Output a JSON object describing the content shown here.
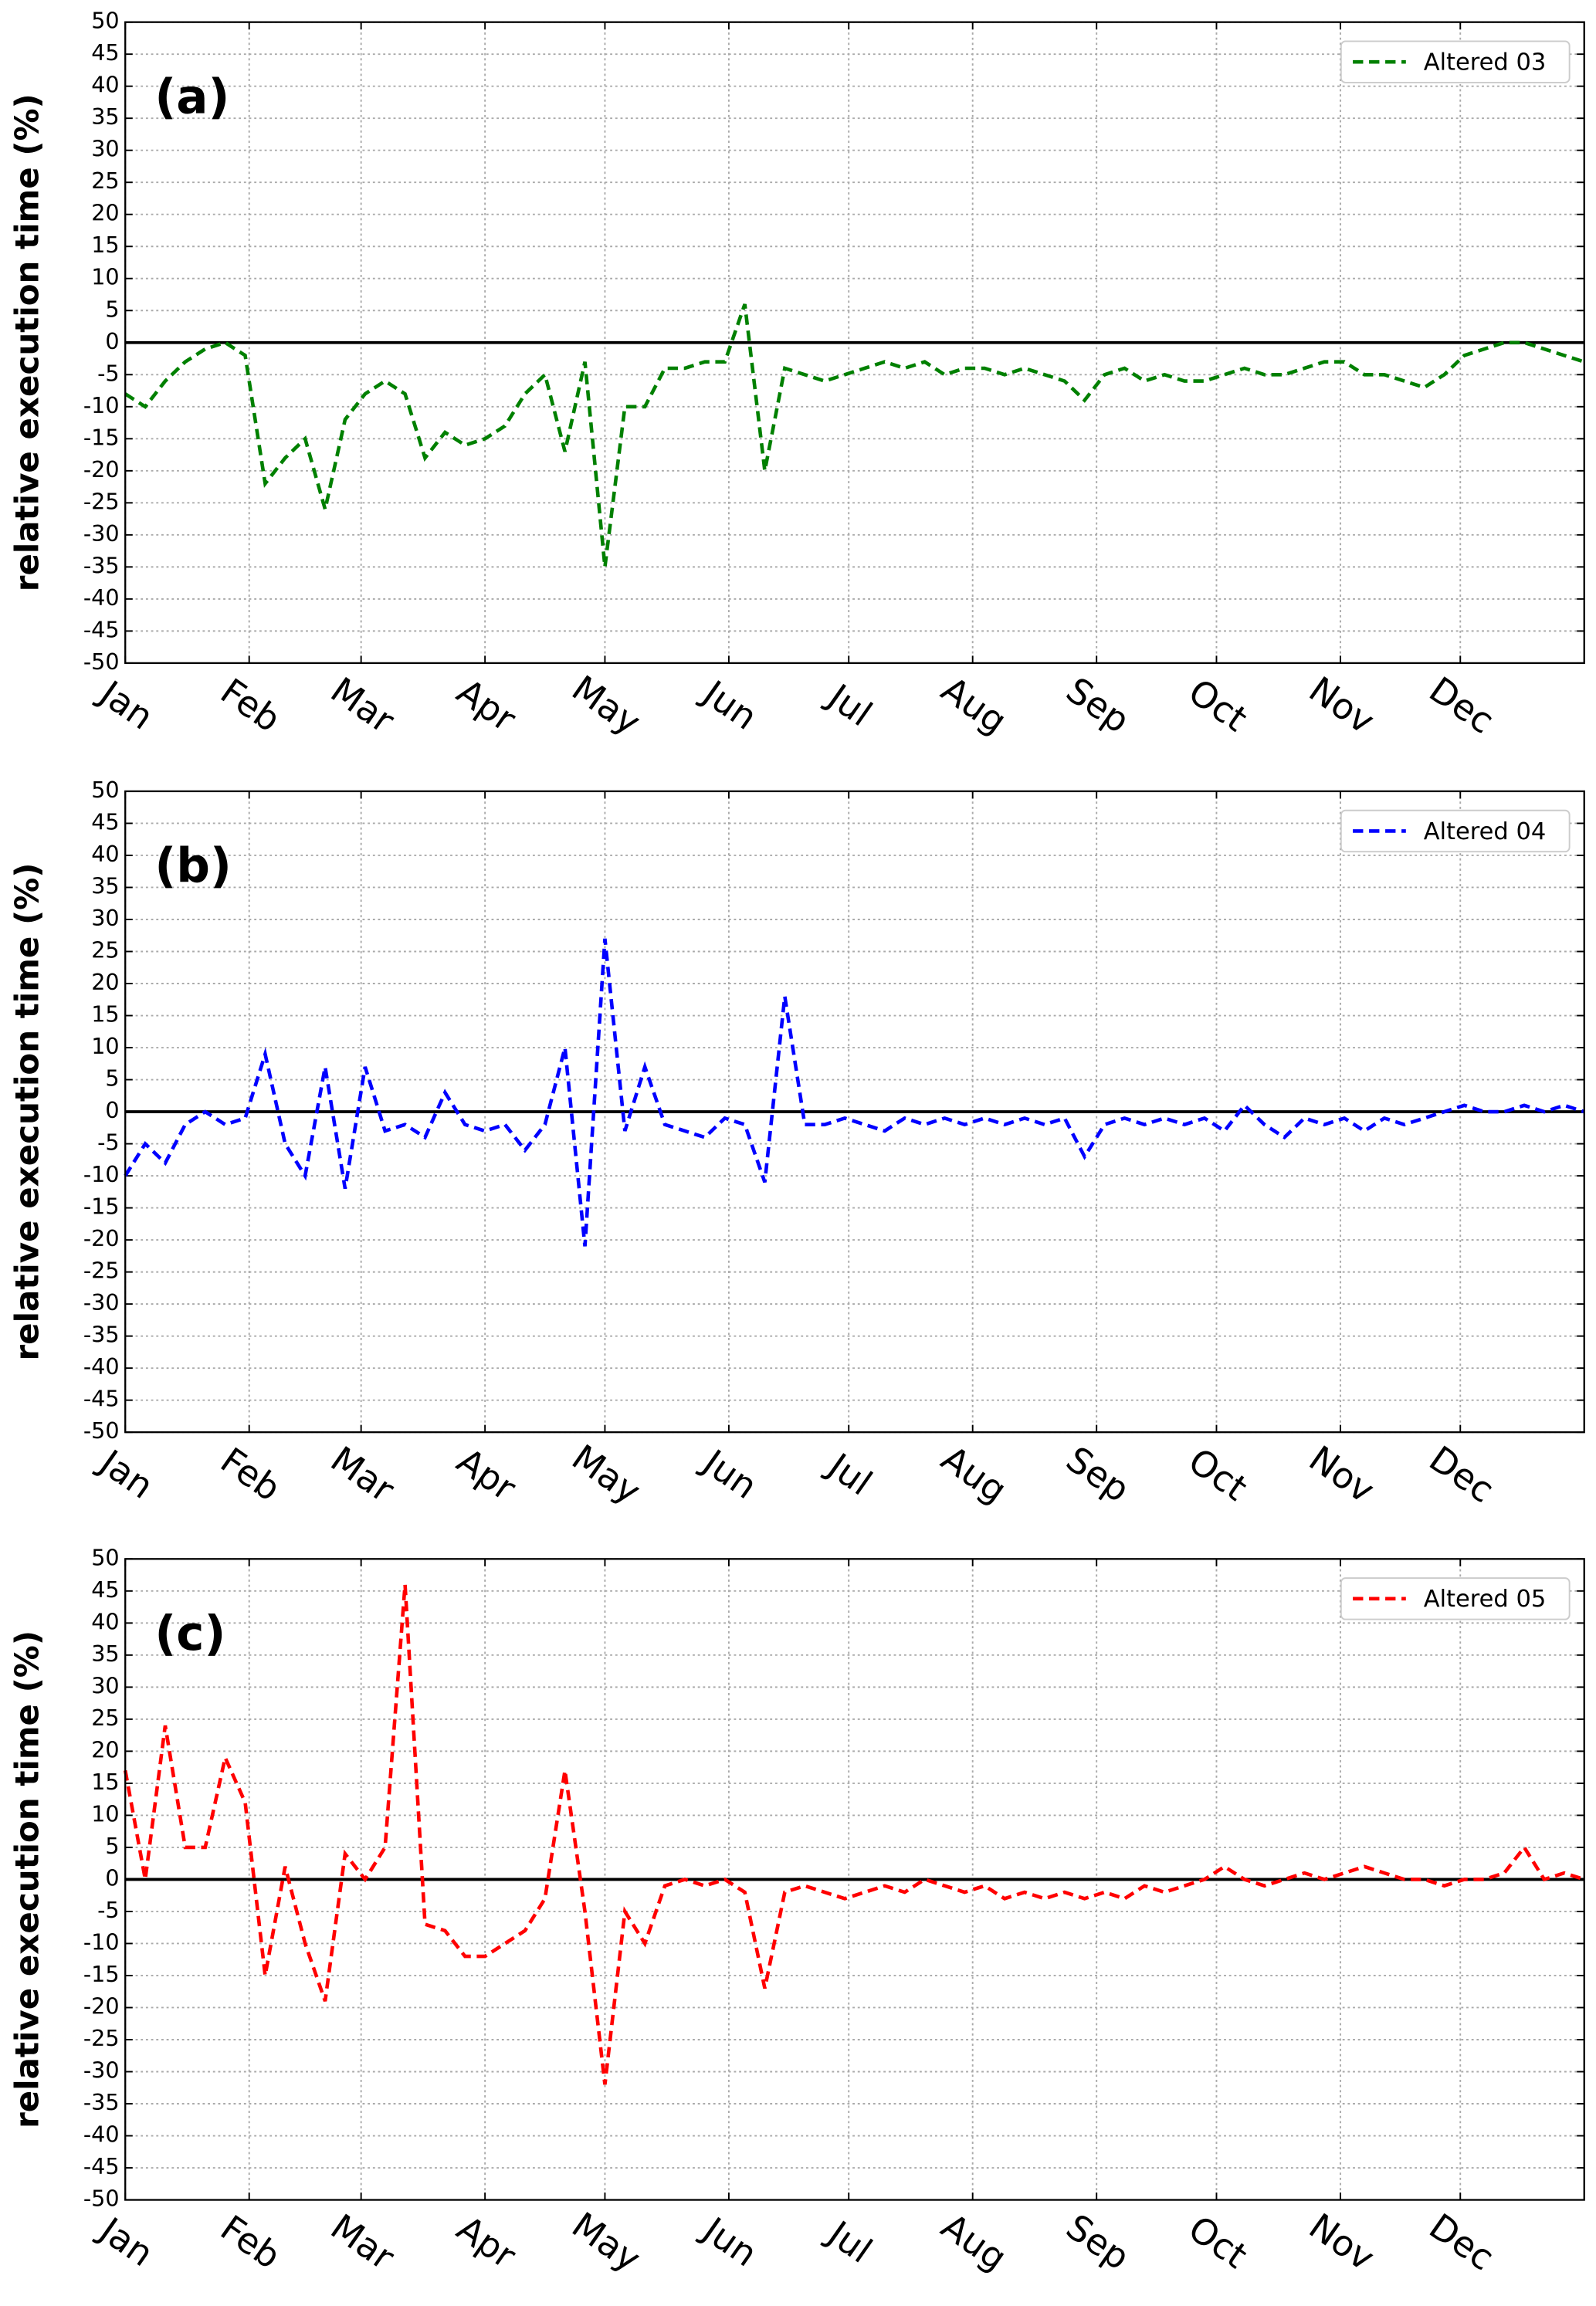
{
  "chart_data": [
    {
      "type": "line",
      "panel_label": "(a)",
      "ylabel": "relative execution time (%)",
      "x": [
        0,
        5,
        10,
        15,
        20,
        25,
        30,
        35,
        40,
        45,
        50,
        55,
        60,
        65,
        70,
        75,
        80,
        85,
        90,
        95,
        100,
        105,
        110,
        115,
        120,
        125,
        130,
        135,
        140,
        145,
        150,
        155,
        160,
        165,
        170,
        175,
        180,
        185,
        190,
        195,
        200,
        205,
        210,
        215,
        220,
        225,
        230,
        235,
        240,
        245,
        250,
        255,
        260,
        265,
        270,
        275,
        280,
        285,
        290,
        295,
        300,
        305,
        310,
        315,
        320,
        325,
        330,
        335,
        340,
        345,
        350,
        355,
        360,
        365
      ],
      "series": [
        {
          "name": "Altered 03",
          "color": "#008000",
          "values": [
            -8,
            -10,
            -6,
            -3,
            -1,
            0,
            -2,
            -22,
            -18,
            -15,
            -26,
            -12,
            -8,
            -6,
            -8,
            -18,
            -14,
            -16,
            -15,
            -13,
            -8,
            -5,
            -17,
            -3,
            -35,
            -10,
            -10,
            -4,
            -4,
            -3,
            -3,
            6,
            -20,
            -4,
            -5,
            -6,
            -5,
            -4,
            -3,
            -4,
            -3,
            -5,
            -4,
            -4,
            -5,
            -4,
            -5,
            -6,
            -9,
            -5,
            -4,
            -6,
            -5,
            -6,
            -6,
            -5,
            -4,
            -5,
            -5,
            -4,
            -3,
            -3,
            -5,
            -5,
            -6,
            -7,
            -5,
            -2,
            -1,
            0,
            0,
            -1,
            -2,
            -3
          ]
        }
      ],
      "xlim": [
        0,
        365
      ],
      "xticks": [
        {
          "value": 0,
          "label": "Jan"
        },
        {
          "value": 31,
          "label": "Feb"
        },
        {
          "value": 59,
          "label": "Mar"
        },
        {
          "value": 90,
          "label": "Apr"
        },
        {
          "value": 120,
          "label": "May"
        },
        {
          "value": 151,
          "label": "Jun"
        },
        {
          "value": 181,
          "label": "Jul"
        },
        {
          "value": 212,
          "label": "Aug"
        },
        {
          "value": 243,
          "label": "Sep"
        },
        {
          "value": 273,
          "label": "Oct"
        },
        {
          "value": 304,
          "label": "Nov"
        },
        {
          "value": 334,
          "label": "Dec"
        }
      ],
      "ylim": [
        -50,
        50
      ],
      "yticks": [
        -50,
        -45,
        -40,
        -35,
        -30,
        -25,
        -20,
        -15,
        -10,
        -5,
        0,
        5,
        10,
        15,
        20,
        25,
        30,
        35,
        40,
        45,
        50
      ],
      "grid": true,
      "zero_line": true,
      "legend": "upper right"
    },
    {
      "type": "line",
      "panel_label": "(b)",
      "ylabel": "relative execution time (%)",
      "x": [
        0,
        5,
        10,
        15,
        20,
        25,
        30,
        35,
        40,
        45,
        50,
        55,
        60,
        65,
        70,
        75,
        80,
        85,
        90,
        95,
        100,
        105,
        110,
        115,
        120,
        125,
        130,
        135,
        140,
        145,
        150,
        155,
        160,
        165,
        170,
        175,
        180,
        185,
        190,
        195,
        200,
        205,
        210,
        215,
        220,
        225,
        230,
        235,
        240,
        245,
        250,
        255,
        260,
        265,
        270,
        275,
        280,
        285,
        290,
        295,
        300,
        305,
        310,
        315,
        320,
        325,
        330,
        335,
        340,
        345,
        350,
        355,
        360,
        365
      ],
      "series": [
        {
          "name": "Altered 04",
          "color": "#0000ff",
          "values": [
            -10,
            -5,
            -8,
            -2,
            0,
            -2,
            -1,
            9,
            -5,
            -10,
            7,
            -12,
            7,
            -3,
            -2,
            -4,
            3,
            -2,
            -3,
            -2,
            -6,
            -2,
            10,
            -21,
            27,
            -3,
            7,
            -2,
            -3,
            -4,
            -1,
            -2,
            -11,
            18,
            -2,
            -2,
            -1,
            -2,
            -3,
            -1,
            -2,
            -1,
            -2,
            -1,
            -2,
            -1,
            -2,
            -1,
            -7,
            -2,
            -1,
            -2,
            -1,
            -2,
            -1,
            -3,
            1,
            -2,
            -4,
            -1,
            -2,
            -1,
            -3,
            -1,
            -2,
            -1,
            0,
            1,
            0,
            0,
            1,
            0,
            1,
            0
          ]
        }
      ],
      "xlim": [
        0,
        365
      ],
      "xticks": [
        {
          "value": 0,
          "label": "Jan"
        },
        {
          "value": 31,
          "label": "Feb"
        },
        {
          "value": 59,
          "label": "Mar"
        },
        {
          "value": 90,
          "label": "Apr"
        },
        {
          "value": 120,
          "label": "May"
        },
        {
          "value": 151,
          "label": "Jun"
        },
        {
          "value": 181,
          "label": "Jul"
        },
        {
          "value": 212,
          "label": "Aug"
        },
        {
          "value": 243,
          "label": "Sep"
        },
        {
          "value": 273,
          "label": "Oct"
        },
        {
          "value": 304,
          "label": "Nov"
        },
        {
          "value": 334,
          "label": "Dec"
        }
      ],
      "ylim": [
        -50,
        50
      ],
      "yticks": [
        -50,
        -45,
        -40,
        -35,
        -30,
        -25,
        -20,
        -15,
        -10,
        -5,
        0,
        5,
        10,
        15,
        20,
        25,
        30,
        35,
        40,
        45,
        50
      ],
      "grid": true,
      "zero_line": true,
      "legend": "upper right"
    },
    {
      "type": "line",
      "panel_label": "(c)",
      "ylabel": "relative execution time (%)",
      "x": [
        0,
        5,
        10,
        15,
        20,
        25,
        30,
        35,
        40,
        45,
        50,
        55,
        60,
        65,
        70,
        75,
        80,
        85,
        90,
        95,
        100,
        105,
        110,
        115,
        120,
        125,
        130,
        135,
        140,
        145,
        150,
        155,
        160,
        165,
        170,
        175,
        180,
        185,
        190,
        195,
        200,
        205,
        210,
        215,
        220,
        225,
        230,
        235,
        240,
        245,
        250,
        255,
        260,
        265,
        270,
        275,
        280,
        285,
        290,
        295,
        300,
        305,
        310,
        315,
        320,
        325,
        330,
        335,
        340,
        345,
        350,
        355,
        360,
        365
      ],
      "series": [
        {
          "name": "Altered 05",
          "color": "#ff0000",
          "values": [
            17,
            0,
            24,
            5,
            5,
            19,
            12,
            -15,
            2,
            -10,
            -19,
            4,
            0,
            5,
            46,
            -7,
            -8,
            -12,
            -12,
            -10,
            -8,
            -3,
            17,
            -5,
            -32,
            -5,
            -10,
            -1,
            0,
            -1,
            0,
            -2,
            -17,
            -2,
            -1,
            -2,
            -3,
            -2,
            -1,
            -2,
            0,
            -1,
            -2,
            -1,
            -3,
            -2,
            -3,
            -2,
            -3,
            -2,
            -3,
            -1,
            -2,
            -1,
            0,
            2,
            0,
            -1,
            0,
            1,
            0,
            1,
            2,
            1,
            0,
            0,
            -1,
            0,
            0,
            1,
            5,
            0,
            1,
            0
          ]
        }
      ],
      "xlim": [
        0,
        365
      ],
      "xticks": [
        {
          "value": 0,
          "label": "Jan"
        },
        {
          "value": 31,
          "label": "Feb"
        },
        {
          "value": 59,
          "label": "Mar"
        },
        {
          "value": 90,
          "label": "Apr"
        },
        {
          "value": 120,
          "label": "May"
        },
        {
          "value": 151,
          "label": "Jun"
        },
        {
          "value": 181,
          "label": "Jul"
        },
        {
          "value": 212,
          "label": "Aug"
        },
        {
          "value": 243,
          "label": "Sep"
        },
        {
          "value": 273,
          "label": "Oct"
        },
        {
          "value": 304,
          "label": "Nov"
        },
        {
          "value": 334,
          "label": "Dec"
        }
      ],
      "ylim": [
        -50,
        50
      ],
      "yticks": [
        -50,
        -45,
        -40,
        -35,
        -30,
        -25,
        -20,
        -15,
        -10,
        -5,
        0,
        5,
        10,
        15,
        20,
        25,
        30,
        35,
        40,
        45,
        50
      ],
      "grid": true,
      "zero_line": true,
      "legend": "upper right"
    }
  ]
}
